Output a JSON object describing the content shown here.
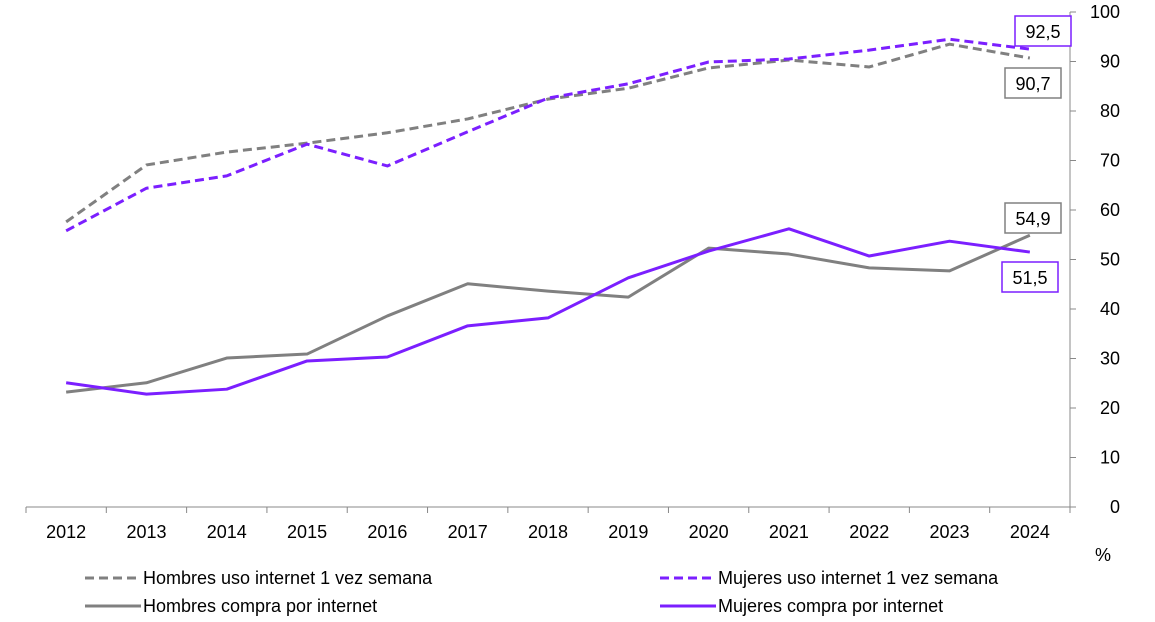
{
  "chart_data": {
    "type": "line",
    "categories": [
      "2012",
      "2013",
      "2014",
      "2015",
      "2016",
      "2017",
      "2018",
      "2019",
      "2020",
      "2021",
      "2022",
      "2023",
      "2024"
    ],
    "ylim": [
      0,
      100
    ],
    "yticks": [
      0,
      10,
      20,
      30,
      40,
      50,
      60,
      70,
      80,
      90,
      100
    ],
    "yaxis_position": "right",
    "ylabel": "%",
    "grid": false,
    "legend_placement": "bottom",
    "series": [
      {
        "name": "Hombres uso internet 1 vez semana",
        "color": "#808080",
        "style": "dashed",
        "values": [
          57.6,
          69.1,
          71.7,
          73.5,
          75.6,
          78.4,
          82.4,
          84.6,
          88.7,
          90.3,
          88.9,
          93.5,
          90.7
        ],
        "end_label": "90,7"
      },
      {
        "name": "Mujeres uso internet 1 vez semana",
        "color": "#7B1FFF",
        "style": "dashed",
        "values": [
          55.8,
          64.4,
          66.9,
          73.3,
          68.9,
          75.8,
          82.6,
          85.5,
          89.9,
          90.5,
          92.3,
          94.5,
          92.5
        ],
        "end_label": "92,5"
      },
      {
        "name": "Hombres compra por internet",
        "color": "#808080",
        "style": "solid",
        "values": [
          23.2,
          25.1,
          30.1,
          30.9,
          38.6,
          45.1,
          43.6,
          42.4,
          52.3,
          51.1,
          48.3,
          47.7,
          54.9
        ],
        "end_label": "54,9"
      },
      {
        "name": "Mujeres compra por internet",
        "color": "#7B1FFF",
        "style": "solid",
        "values": [
          25.1,
          22.8,
          23.8,
          29.5,
          30.3,
          36.6,
          38.2,
          46.3,
          51.7,
          56.2,
          50.7,
          53.7,
          51.5
        ],
        "end_label": "51,5"
      }
    ]
  }
}
